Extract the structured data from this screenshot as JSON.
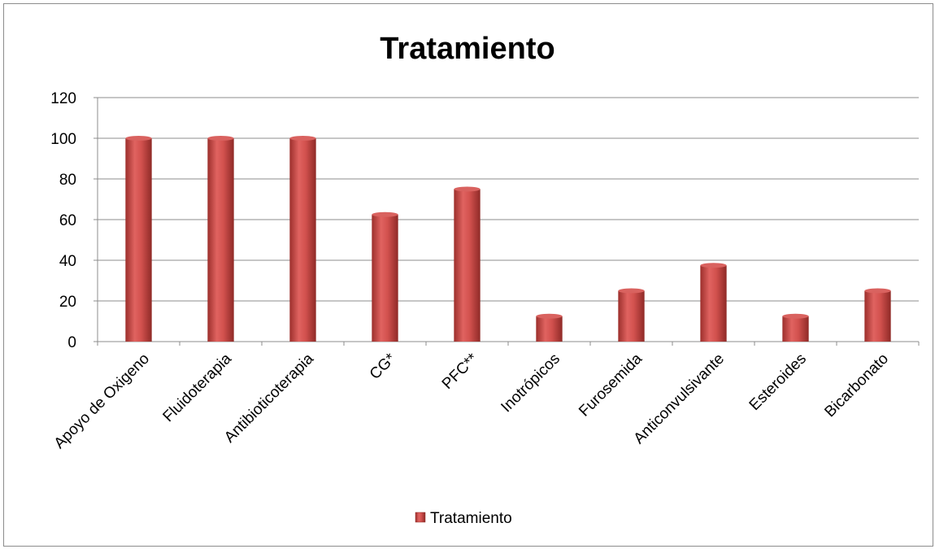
{
  "chart_data": {
    "type": "bar",
    "title": "Tratamiento",
    "xlabel": "",
    "ylabel": "",
    "ylim": [
      0,
      120
    ],
    "yticks": [
      0,
      20,
      40,
      60,
      80,
      100,
      120
    ],
    "grid": true,
    "legend_position": "bottom",
    "categories": [
      "Apoyo de Oxigeno",
      "Fluidoterapia",
      "Antibioticoterapia",
      "CG*",
      "PFC**",
      "Inotrópicos",
      "Furosemida",
      "Anticonvulsivante",
      "Esteroides",
      "Bicarbonato"
    ],
    "series": [
      {
        "name": "Tratamiento",
        "color": "#c0504d",
        "values": [
          100,
          100,
          100,
          62.5,
          75,
          12.5,
          25,
          37.5,
          12.5,
          25
        ]
      }
    ]
  }
}
